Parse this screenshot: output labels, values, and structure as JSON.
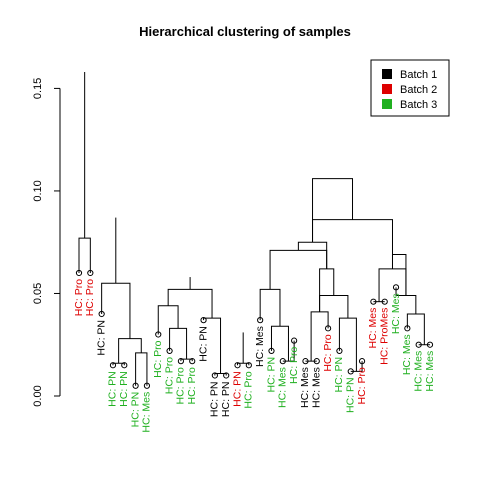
{
  "chart_data": {
    "type": "dendrogram",
    "title": "Hierarchical clustering of samples",
    "xlabel": "",
    "ylabel": "",
    "ylim": [
      0,
      0.16
    ],
    "yticks": [
      "0.00",
      "0.05",
      "0.10",
      "0.15"
    ],
    "grid": false,
    "legend_position": "top-right",
    "batch_colors": {
      "Batch 1": "#000000",
      "Batch 2": "#dd0000",
      "Batch 3": "#20b020"
    },
    "legend": [
      {
        "label": "Batch 1",
        "color": "#000000"
      },
      {
        "label": "Batch 2",
        "color": "#dd0000"
      },
      {
        "label": "Batch 3",
        "color": "#20b020"
      }
    ],
    "leaves": [
      {
        "label": "HC: Pro",
        "batch": "Batch 2",
        "height": 0.06
      },
      {
        "label": "HC: Pro",
        "batch": "Batch 2",
        "height": 0.06
      },
      {
        "label": "HC: PN",
        "batch": "Batch 1",
        "height": 0.04
      },
      {
        "label": "HC: PN",
        "batch": "Batch 3",
        "height": 0.015
      },
      {
        "label": "HC: PN",
        "batch": "Batch 3",
        "height": 0.015
      },
      {
        "label": "HC: PN",
        "batch": "Batch 3",
        "height": 0.005
      },
      {
        "label": "HC: Mes",
        "batch": "Batch 3",
        "height": 0.005
      },
      {
        "label": "HC: Pro",
        "batch": "Batch 3",
        "height": 0.03
      },
      {
        "label": "HC: Pro",
        "batch": "Batch 3",
        "height": 0.022
      },
      {
        "label": "HC: Pro",
        "batch": "Batch 3",
        "height": 0.017
      },
      {
        "label": "HC: Pro",
        "batch": "Batch 3",
        "height": 0.017
      },
      {
        "label": "HC: PN",
        "batch": "Batch 1",
        "height": 0.037
      },
      {
        "label": "HC: PN",
        "batch": "Batch 1",
        "height": 0.01
      },
      {
        "label": "HC: PN",
        "batch": "Batch 1",
        "height": 0.01
      },
      {
        "label": "HC: PN",
        "batch": "Batch 2",
        "height": 0.015
      },
      {
        "label": "HC: Pro",
        "batch": "Batch 3",
        "height": 0.015
      },
      {
        "label": "HC: Mes",
        "batch": "Batch 1",
        "height": 0.037
      },
      {
        "label": "HC: PN",
        "batch": "Batch 3",
        "height": 0.022
      },
      {
        "label": "HC: Mes",
        "batch": "Batch 3",
        "height": 0.017
      },
      {
        "label": "HC: Pro",
        "batch": "Batch 3",
        "height": 0.027
      },
      {
        "label": "HC: Mes",
        "batch": "Batch 1",
        "height": 0.017
      },
      {
        "label": "HC: Mes",
        "batch": "Batch 1",
        "height": 0.017
      },
      {
        "label": "HC: Pro",
        "batch": "Batch 2",
        "height": 0.033
      },
      {
        "label": "HC: PN",
        "batch": "Batch 3",
        "height": 0.022
      },
      {
        "label": "HC: PN",
        "batch": "Batch 3",
        "height": 0.012
      },
      {
        "label": "HC: Pro",
        "batch": "Batch 2",
        "height": 0.017
      },
      {
        "label": "HC: Mes",
        "batch": "Batch 2",
        "height": 0.046
      },
      {
        "label": "HC: ProMes",
        "batch": "Batch 2",
        "height": 0.046
      },
      {
        "label": "HC: Mes",
        "batch": "Batch 3",
        "height": 0.053
      },
      {
        "label": "HC: Mes",
        "batch": "Batch 3",
        "height": 0.033
      },
      {
        "label": "HC: Mes",
        "batch": "Batch 3",
        "height": 0.025
      },
      {
        "label": "HC: Mes",
        "batch": "Batch 3",
        "height": 0.025
      }
    ],
    "merges": [
      {
        "left": 1,
        "right": 2,
        "height": 0.077
      },
      {
        "left": 4,
        "right": 5,
        "height": 0.016
      },
      {
        "left": 6,
        "right": 7,
        "height": 0.021
      },
      {
        "left": -2,
        "right": -3,
        "height": 0.028
      },
      {
        "left": 3,
        "right": -4,
        "height": 0.055
      },
      {
        "left": 10,
        "right": 11,
        "height": 0.018
      },
      {
        "left": 9,
        "right": -6,
        "height": 0.033
      },
      {
        "left": 8,
        "right": -7,
        "height": 0.044
      },
      {
        "left": 13,
        "right": 14,
        "height": 0.011
      },
      {
        "left": 12,
        "right": -9,
        "height": 0.038
      },
      {
        "left": -8,
        "right": -10,
        "height": 0.052
      },
      {
        "left": -11,
        "right": -12,
        "height": 0.058
      },
      {
        "left": -5,
        "right": -13,
        "height": 0.087
      },
      {
        "left": 15,
        "right": 16,
        "height": 0.016
      },
      {
        "left": -14,
        "right": -15,
        "height": 0.031
      },
      {
        "left": 19,
        "right": 20,
        "height": 0.017
      },
      {
        "left": 18,
        "right": -16,
        "height": 0.034
      },
      {
        "left": 17,
        "right": -17,
        "height": 0.052
      },
      {
        "left": 21,
        "right": 22,
        "height": 0.017
      },
      {
        "left": -19,
        "right": 23,
        "height": 0.041
      },
      {
        "left": 25,
        "right": 26,
        "height": 0.012
      },
      {
        "left": 24,
        "right": -21,
        "height": 0.038
      },
      {
        "left": -22,
        "right": -20,
        "height": 0.049
      },
      {
        "left": -23,
        "right": -20,
        "height": 0.062
      },
      {
        "left": -18,
        "right": -24,
        "height": 0.071
      },
      {
        "left": -24,
        "right": -25,
        "height": 0.075
      },
      {
        "left": 27,
        "right": 28,
        "height": 0.046
      },
      {
        "left": 31,
        "right": 32,
        "height": 0.025
      },
      {
        "left": 30,
        "right": -28,
        "height": 0.04
      },
      {
        "left": 29,
        "right": -29,
        "height": 0.049
      },
      {
        "left": -27,
        "right": -30,
        "height": 0.062
      },
      {
        "left": -31,
        "right": -30,
        "height": 0.069
      },
      {
        "left": -26,
        "right": -31,
        "height": 0.086
      },
      {
        "left": -26,
        "right": -33,
        "height": 0.106
      },
      {
        "left": -13,
        "right": -34,
        "height": 0.133
      },
      {
        "left": -1,
        "right": -35,
        "height": 0.158
      }
    ]
  }
}
